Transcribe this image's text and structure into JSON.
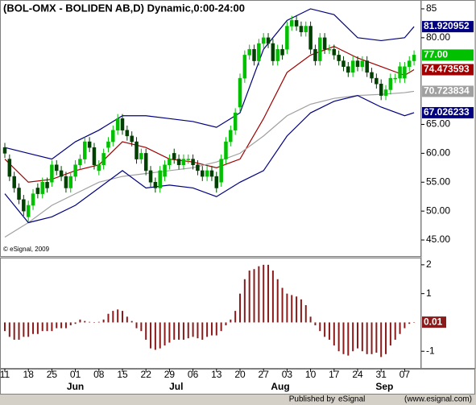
{
  "chart_data": [
    {
      "type": "candlestick",
      "title": "(BOL-OMX - BOLIDEN AB,D) Dynamic,0:00-24:00",
      "note": "© eSignal, 2009",
      "up_color": "#00c000",
      "down_color": "#004000",
      "open": [
        61,
        59,
        56,
        54,
        52,
        49,
        51,
        54,
        53,
        55,
        55,
        58,
        57,
        56,
        54,
        56,
        58,
        59,
        62,
        61,
        57,
        58,
        61,
        62,
        64,
        66,
        64,
        63,
        62,
        59,
        60,
        57,
        55,
        54,
        56,
        58,
        60,
        59,
        58,
        59,
        59,
        58,
        57,
        56,
        57,
        56,
        55,
        59,
        62,
        64,
        68,
        73,
        77,
        78,
        76,
        79,
        80,
        79,
        76,
        78,
        78,
        82,
        83,
        82,
        81,
        82,
        78,
        76,
        80,
        78,
        78,
        77,
        76,
        75,
        74,
        76,
        75,
        76,
        74,
        73,
        72,
        70,
        71,
        73,
        73,
        73,
        75,
        76
      ],
      "high": [
        61.8,
        59.8,
        56.8,
        54.8,
        52.8,
        51.8,
        53.8,
        54.8,
        55.8,
        55.8,
        58.8,
        58.8,
        57.8,
        56.8,
        56.8,
        58.8,
        59.8,
        62.8,
        62.8,
        61.8,
        58.8,
        60.8,
        62.8,
        64.8,
        66.8,
        66.8,
        64.8,
        63.8,
        62.8,
        60.8,
        60.8,
        57.8,
        55.8,
        57.8,
        58.8,
        59.8,
        60.8,
        59.8,
        59.8,
        59.8,
        59.8,
        58.8,
        57.8,
        57.8,
        57.8,
        56.8,
        59.8,
        62.8,
        64.8,
        67.8,
        73.8,
        77.8,
        78.8,
        78.8,
        79.8,
        80.8,
        80.8,
        79.8,
        78.8,
        78.8,
        82.8,
        83.8,
        83.8,
        82.8,
        82.8,
        82.8,
        78.8,
        80.8,
        80.8,
        78.8,
        78.8,
        77.8,
        76.8,
        75.8,
        76.8,
        76.8,
        76.8,
        76.8,
        74.8,
        73.8,
        72.8,
        71.8,
        73.8,
        73.8,
        75.8,
        75.8,
        76.8,
        77.8
      ],
      "low": [
        59.2,
        55.2,
        53.2,
        51.2,
        49.2,
        48.2,
        50.2,
        52.2,
        52.2,
        53.2,
        54.2,
        56.2,
        55.2,
        53.2,
        53.2,
        55.2,
        57.2,
        58.2,
        60.2,
        57.2,
        56.2,
        57.2,
        60.2,
        61.2,
        63.2,
        63.2,
        62.2,
        61.2,
        58.2,
        58.2,
        56.2,
        54.2,
        53.2,
        53.2,
        55.2,
        57.2,
        58.2,
        57.2,
        57.2,
        58.2,
        57.2,
        56.2,
        55.2,
        55.2,
        55.2,
        53.2,
        54.2,
        58.2,
        61.2,
        63.2,
        67.2,
        72.2,
        76.2,
        75.2,
        75.2,
        78.2,
        78.2,
        75.2,
        75.2,
        76.2,
        77.2,
        81.2,
        81.2,
        80.2,
        80.2,
        77.2,
        75.2,
        75.2,
        77.2,
        77.2,
        76.2,
        75.2,
        74.2,
        73.2,
        73.2,
        74.2,
        74.2,
        73.2,
        72.2,
        71.2,
        69.2,
        69.2,
        70.2,
        72.2,
        72.2,
        72.2,
        74.2,
        75.2
      ],
      "close": [
        60,
        56,
        54,
        52,
        50,
        51,
        53,
        53,
        55,
        54,
        58,
        57,
        56,
        54,
        56,
        58,
        59,
        62,
        61,
        58,
        58,
        60,
        62,
        64,
        66,
        64,
        63,
        62,
        59,
        60,
        57,
        55,
        54,
        57,
        58,
        59,
        59,
        58,
        59,
        59,
        58,
        57,
        56,
        57,
        56,
        54,
        59,
        62,
        64,
        67,
        73,
        77,
        78,
        76,
        79,
        80,
        79,
        76,
        78,
        77,
        82,
        83,
        82,
        81,
        82,
        78,
        76,
        80,
        78,
        78,
        77,
        76,
        75,
        74,
        76,
        75,
        76,
        74,
        73,
        72,
        70,
        71,
        73,
        73,
        75,
        75,
        76,
        77
      ],
      "last_close_label": "77.00",
      "overlays": [
        {
          "color": "#000080",
          "x": [
            0,
            5,
            10,
            15,
            20,
            25,
            30,
            35,
            40,
            45,
            50,
            55,
            60,
            65,
            70,
            75,
            80,
            85,
            87
          ],
          "values": [
            61,
            60,
            59,
            62,
            64,
            66.5,
            66.5,
            66,
            65.5,
            64.5,
            67,
            78,
            83,
            85,
            84,
            80,
            79.5,
            80,
            81.920952
          ]
        },
        {
          "color": "#a00000",
          "x": [
            0,
            5,
            10,
            15,
            20,
            25,
            30,
            35,
            40,
            45,
            50,
            55,
            60,
            65,
            70,
            75,
            80,
            85,
            87
          ],
          "values": [
            59,
            55,
            55.5,
            57,
            58,
            62,
            61,
            59,
            58.5,
            57.5,
            59,
            66,
            74,
            77,
            78.5,
            76.5,
            75,
            73.5,
            74.473593
          ]
        },
        {
          "color": "#a0a0a0",
          "x": [
            0,
            5,
            10,
            15,
            20,
            25,
            30,
            35,
            40,
            45,
            50,
            55,
            60,
            65,
            70,
            75,
            80,
            85,
            87
          ],
          "values": [
            45.5,
            48,
            51,
            53,
            55,
            56,
            56.5,
            57,
            57.5,
            58.5,
            60,
            63,
            66.5,
            68.5,
            69.5,
            70,
            70.2,
            70.5,
            70.723834
          ]
        },
        {
          "color": "#000080",
          "x": [
            0,
            5,
            10,
            15,
            20,
            25,
            30,
            35,
            40,
            45,
            50,
            55,
            60,
            65,
            70,
            75,
            80,
            85,
            87
          ],
          "values": [
            53,
            48,
            49,
            51,
            54,
            57,
            54,
            54.5,
            54,
            52.5,
            55,
            57,
            63,
            67,
            69,
            70,
            68,
            66.5,
            67.026233
          ]
        }
      ],
      "ylim": [
        42.22,
        86.39
      ],
      "yticks": [
        85,
        {
          "value": 80,
          "label": "80.00"
        },
        {
          "value": 65,
          "label": "65.00"
        },
        {
          "value": 60,
          "label": "60.00"
        },
        {
          "value": 55,
          "label": "55.00"
        },
        {
          "value": 50,
          "label": "50.00"
        },
        {
          "value": 45,
          "label": "45.00"
        }
      ]
    },
    {
      "type": "bar",
      "color": "#8b1a1a",
      "values": [
        -0.3,
        -0.5,
        -0.6,
        -0.6,
        -0.5,
        -0.5,
        -0.4,
        -0.4,
        -0.3,
        -0.3,
        -0.3,
        -0.2,
        -0.2,
        -0.2,
        -0.1,
        -0.05,
        0.1,
        0.05,
        0.02,
        0,
        0.02,
        0.1,
        0.3,
        0.4,
        0.45,
        0.4,
        0.2,
        0.05,
        -0.2,
        -0.3,
        -0.6,
        -0.9,
        -0.95,
        -0.9,
        -0.8,
        -0.7,
        -0.6,
        -0.6,
        -0.6,
        -0.55,
        -0.5,
        -0.55,
        -0.6,
        -0.5,
        -0.45,
        -0.45,
        -0.3,
        -0.1,
        0.1,
        0.4,
        1,
        1.5,
        1.8,
        1.85,
        1.95,
        2,
        2,
        1.8,
        1.5,
        1.2,
        1,
        0.95,
        0.9,
        0.8,
        0.6,
        0.2,
        -0.1,
        -0.3,
        -0.5,
        -0.6,
        -0.8,
        -1,
        -1.1,
        -1.15,
        -1,
        -0.9,
        -1,
        -1.1,
        -1.1,
        -1.05,
        -1.2,
        -1.1,
        -0.8,
        -0.6,
        -0.4,
        -0.2,
        -0.05,
        0.01
      ],
      "ylim": [
        -1.58,
        2.22
      ],
      "yticks": [
        2,
        1,
        -1
      ],
      "xticks": [
        {
          "value": 0,
          "label": "11"
        },
        {
          "value": 5,
          "label": "18"
        },
        {
          "value": 10,
          "label": "25"
        },
        {
          "value": 15,
          "label": "01"
        },
        {
          "value": 20,
          "label": "08"
        },
        {
          "value": 25,
          "label": "15"
        },
        {
          "value": 30,
          "label": "22"
        },
        {
          "value": 35,
          "label": "29"
        },
        {
          "value": 40,
          "label": "06"
        },
        {
          "value": 45,
          "label": "13"
        },
        {
          "value": 50,
          "label": "20"
        },
        {
          "value": 55,
          "label": "27"
        },
        {
          "value": 60,
          "label": "03"
        },
        {
          "value": 65,
          "label": "10"
        },
        {
          "value": 70,
          "label": "17"
        },
        {
          "value": 75,
          "label": "24"
        },
        {
          "value": 80,
          "label": "31"
        },
        {
          "value": 85,
          "label": "07"
        }
      ],
      "months": [
        "Jun",
        "Jul",
        "Aug",
        "Sep"
      ]
    }
  ],
  "footer": {
    "prefix": "Published by",
    "brand": "eSignal",
    "url": "(www.esignal.com)"
  }
}
